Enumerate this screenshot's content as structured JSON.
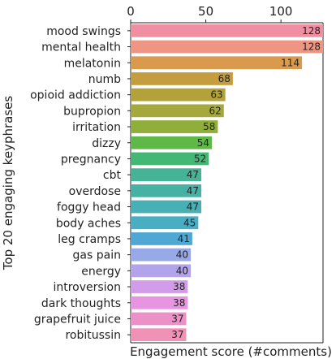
{
  "chart_data": {
    "type": "bar",
    "orientation": "horizontal",
    "title": "",
    "xlabel": "Engagement score (#comments)",
    "ylabel": "Top 20 engaging keyphrases",
    "xlim": [
      0,
      128
    ],
    "xticks": [
      0,
      50,
      100
    ],
    "x_axis_position": "top",
    "grid": false,
    "categories": [
      "mood swings",
      "mental health",
      "melatonin",
      "numb",
      "opioid addiction",
      "bupropion",
      "irritation",
      "dizzy",
      "pregnancy",
      "cbt",
      "overdose",
      "foggy head",
      "body aches",
      "leg cramps",
      "gas pain",
      "energy",
      "introversion",
      "dark thoughts",
      "grapefruit juice",
      "robitussin"
    ],
    "values": [
      128,
      128,
      114,
      68,
      63,
      62,
      58,
      54,
      52,
      47,
      47,
      47,
      45,
      41,
      40,
      40,
      38,
      38,
      37,
      37
    ],
    "colors": [
      "#ef8fa0",
      "#ef9584",
      "#d99a4e",
      "#c49d3f",
      "#b3a23a",
      "#a5a83c",
      "#8fae3a",
      "#5fb847",
      "#45b775",
      "#45b395",
      "#46b2a5",
      "#47b0b4",
      "#49adc4",
      "#4fa8d4",
      "#97a9e6",
      "#b3a3eb",
      "#d29ce8",
      "#e795e0",
      "#ec91c8",
      "#ef92b6"
    ]
  }
}
